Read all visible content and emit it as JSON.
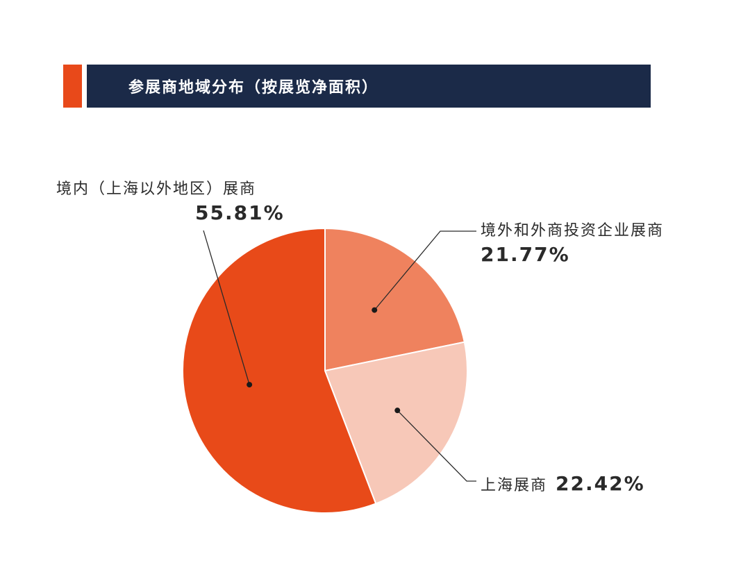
{
  "colors": {
    "accent": "#E8491A",
    "banner": "#1B2A48",
    "series": [
      "#E84A19",
      "#EF825E",
      "#F7C8B8"
    ]
  },
  "header": {
    "title": "参展商地域分布（按展览净面积）"
  },
  "chart_data": {
    "type": "pie",
    "categories": [
      "境内（上海以外地区）展商",
      "境外和外商投资企业展商",
      "上海展商"
    ],
    "values": [
      55.81,
      21.77,
      22.42
    ],
    "value_labels": [
      "55.81%",
      "21.77%",
      "22.42%"
    ],
    "title": "参展商地域分布（按展览净面积）"
  }
}
